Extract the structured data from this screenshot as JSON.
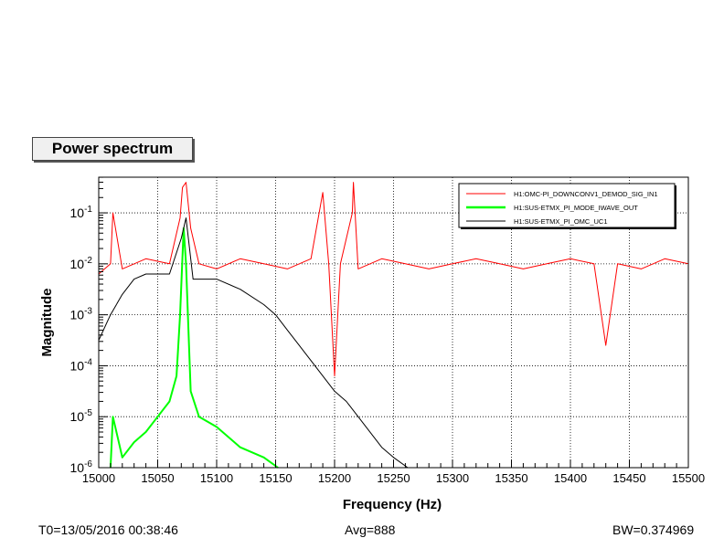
{
  "chart_data": {
    "type": "line",
    "title": "Power spectrum",
    "xlabel": "Frequency (Hz)",
    "ylabel": "Magnitude",
    "xlim": [
      15000,
      15500
    ],
    "ylim_log10": [
      -6,
      -0.3
    ],
    "y_scale": "log",
    "grid": true,
    "legend_position": "top-right",
    "x_ticks": [
      "15000",
      "15050",
      "15100",
      "15150",
      "15200",
      "15250",
      "15300",
      "15350",
      "15400",
      "15450",
      "15500"
    ],
    "y_tick_base": "10",
    "y_ticks": [
      {
        "exp": "-1",
        "log10": -1
      },
      {
        "exp": "-2",
        "log10": -2
      },
      {
        "exp": "-3",
        "log10": -3
      },
      {
        "exp": "-4",
        "log10": -4
      },
      {
        "exp": "-5",
        "log10": -5
      },
      {
        "exp": "-6",
        "log10": -6
      }
    ],
    "series": [
      {
        "name": "H1:OMC-PI_DOWNCONV1_DEMOD_SIG_IN1",
        "color": "#ff0000",
        "points_log10": [
          [
            15000,
            -2.2
          ],
          [
            15010,
            -2.0
          ],
          [
            15012,
            -1.0
          ],
          [
            15020,
            -2.1
          ],
          [
            15040,
            -1.9
          ],
          [
            15060,
            -2.0
          ],
          [
            15069,
            -1.1
          ],
          [
            15071,
            -0.5
          ],
          [
            15074,
            -0.4
          ],
          [
            15078,
            -1.3
          ],
          [
            15085,
            -2.0
          ],
          [
            15100,
            -2.1
          ],
          [
            15120,
            -1.9
          ],
          [
            15140,
            -2.0
          ],
          [
            15160,
            -2.1
          ],
          [
            15180,
            -1.9
          ],
          [
            15190,
            -0.6
          ],
          [
            15195,
            -2.0
          ],
          [
            15200,
            -4.2
          ],
          [
            15205,
            -2.0
          ],
          [
            15215,
            -1.0
          ],
          [
            15216,
            -0.4
          ],
          [
            15220,
            -2.1
          ],
          [
            15240,
            -1.9
          ],
          [
            15260,
            -2.0
          ],
          [
            15280,
            -2.1
          ],
          [
            15300,
            -2.0
          ],
          [
            15320,
            -1.9
          ],
          [
            15340,
            -2.0
          ],
          [
            15360,
            -2.1
          ],
          [
            15380,
            -2.0
          ],
          [
            15400,
            -1.9
          ],
          [
            15420,
            -2.0
          ],
          [
            15430,
            -3.6
          ],
          [
            15440,
            -2.0
          ],
          [
            15460,
            -2.1
          ],
          [
            15480,
            -1.9
          ],
          [
            15500,
            -2.0
          ]
        ]
      },
      {
        "name": "H1:SUS-ETMX_PI_MODE_IWAVE_OUT",
        "color": "#00ff00",
        "points_log10": [
          [
            15010,
            -6.0
          ],
          [
            15012,
            -5.0
          ],
          [
            15020,
            -5.8
          ],
          [
            15030,
            -5.5
          ],
          [
            15040,
            -5.3
          ],
          [
            15050,
            -5.0
          ],
          [
            15060,
            -4.7
          ],
          [
            15066,
            -4.2
          ],
          [
            15069,
            -3.0
          ],
          [
            15072,
            -1.3
          ],
          [
            15074,
            -2.0
          ],
          [
            15078,
            -4.5
          ],
          [
            15085,
            -5.0
          ],
          [
            15100,
            -5.2
          ],
          [
            15120,
            -5.6
          ],
          [
            15140,
            -5.8
          ],
          [
            15152,
            -6.0
          ]
        ]
      },
      {
        "name": "H1:SUS-ETMX_PI_OMC_UC1",
        "color": "#000000",
        "points_log10": [
          [
            15000,
            -3.5
          ],
          [
            15010,
            -3.0
          ],
          [
            15020,
            -2.6
          ],
          [
            15030,
            -2.3
          ],
          [
            15040,
            -2.2
          ],
          [
            15060,
            -2.2
          ],
          [
            15070,
            -1.5
          ],
          [
            15074,
            -1.1
          ],
          [
            15080,
            -2.3
          ],
          [
            15100,
            -2.3
          ],
          [
            15120,
            -2.5
          ],
          [
            15140,
            -2.8
          ],
          [
            15150,
            -3.0
          ],
          [
            15160,
            -3.3
          ],
          [
            15170,
            -3.6
          ],
          [
            15180,
            -3.9
          ],
          [
            15190,
            -4.2
          ],
          [
            15200,
            -4.5
          ],
          [
            15210,
            -4.7
          ],
          [
            15220,
            -5.0
          ],
          [
            15230,
            -5.3
          ],
          [
            15240,
            -5.6
          ],
          [
            15250,
            -5.8
          ],
          [
            15262,
            -6.0
          ]
        ]
      }
    ]
  },
  "footer": {
    "t0": "T0=13/05/2016 00:38:46",
    "avg": "Avg=888",
    "bw": "BW=0.374969"
  }
}
